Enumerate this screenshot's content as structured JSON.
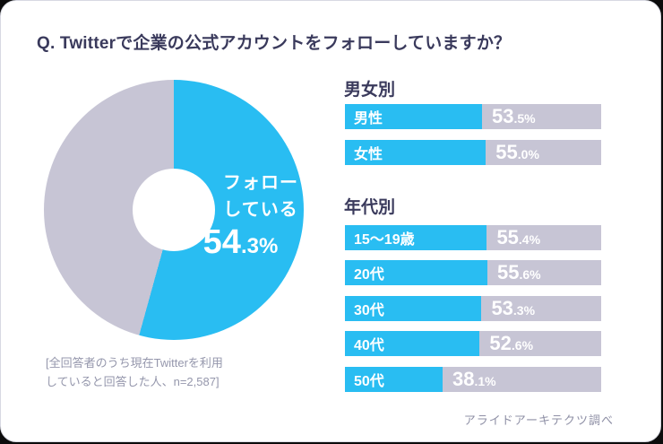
{
  "title": "Q. Twitterで企業の公式アカウントをフォローしていますか？",
  "colors": {
    "accent_blue": "#29bdf2",
    "bar_gray": "#c7c5d5",
    "heading_navy": "#3a3a5c",
    "note_gray": "#9597ac"
  },
  "donut": {
    "label": "フォロー\nしている",
    "value": 54.3,
    "value_int": "54",
    "value_frac": ".3%"
  },
  "sections": [
    {
      "heading": "男女別",
      "bars": [
        {
          "label": "男性",
          "value": 53.5,
          "value_int": "53",
          "value_frac": ".5%"
        },
        {
          "label": "女性",
          "value": 55.0,
          "value_int": "55",
          "value_frac": ".0%"
        }
      ]
    },
    {
      "heading": "年代別",
      "bars": [
        {
          "label": "15～19歳",
          "value": 55.4,
          "value_int": "55",
          "value_frac": ".4%"
        },
        {
          "label": "20代",
          "value": 55.6,
          "value_int": "55",
          "value_frac": ".6%"
        },
        {
          "label": "30代",
          "value": 53.3,
          "value_int": "53",
          "value_frac": ".3%"
        },
        {
          "label": "40代",
          "value": 52.6,
          "value_int": "52",
          "value_frac": ".6%"
        },
        {
          "label": "50代",
          "value": 38.1,
          "value_int": "38",
          "value_frac": ".1%"
        }
      ]
    }
  ],
  "footnote": "[全回答者のうち現在Twitterを利用\nしていると回答した人、n=2,587]",
  "source": "アライドアーキテクツ調べ",
  "chart_data": [
    {
      "type": "pie",
      "donut": true,
      "title": "Q. Twitterで企業の公式アカウントをフォローしていますか？",
      "segments": [
        {
          "label": "フォローしている",
          "value": 54.3,
          "color": "#29bdf2"
        },
        {
          "label": "",
          "value": 45.7,
          "color": "#c7c5d5"
        }
      ],
      "start_angle_deg": 0,
      "direction": "clockwise",
      "note": "[全回答者のうち現在Twitterを利用していると回答した人、n=2,587]"
    },
    {
      "type": "bar",
      "title": "男女別",
      "orientation": "horizontal",
      "categories": [
        "男性",
        "女性"
      ],
      "values": [
        53.5,
        55.0
      ],
      "xlim": [
        0,
        100
      ],
      "unit": "%"
    },
    {
      "type": "bar",
      "title": "年代別",
      "orientation": "horizontal",
      "categories": [
        "15～19歳",
        "20代",
        "30代",
        "40代",
        "50代"
      ],
      "values": [
        55.4,
        55.6,
        53.3,
        52.6,
        38.1
      ],
      "xlim": [
        0,
        100
      ],
      "unit": "%"
    }
  ]
}
